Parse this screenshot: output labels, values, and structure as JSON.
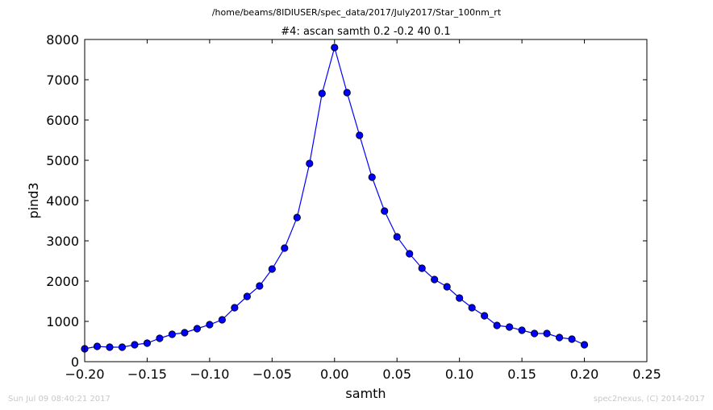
{
  "figure": {
    "suptitle": "/home/beams/8IDIUSER/spec_data/2017/July2017/Star_100nm_rt",
    "footer_left": "Sun Jul 09 08:40:21 2017",
    "footer_right": "spec2nexus, (C) 2014-2017"
  },
  "chart_data": {
    "type": "line",
    "title": "#4: ascan  samth 0.2 -0.2  40 0.1",
    "xlabel": "samth",
    "ylabel": "pind3",
    "xlim": [
      -0.2,
      0.25
    ],
    "ylim": [
      0,
      8000
    ],
    "xticks": [
      -0.2,
      -0.15,
      -0.1,
      -0.05,
      0.0,
      0.05,
      0.1,
      0.15,
      0.2,
      0.25
    ],
    "xtick_labels": [
      "−0.20",
      "−0.15",
      "−0.10",
      "−0.05",
      "0.00",
      "0.05",
      "0.10",
      "0.15",
      "0.20",
      "0.25"
    ],
    "yticks": [
      0,
      1000,
      2000,
      3000,
      4000,
      5000,
      6000,
      7000,
      8000
    ],
    "ytick_labels": [
      "0",
      "1000",
      "2000",
      "3000",
      "4000",
      "5000",
      "6000",
      "7000",
      "8000"
    ],
    "grid": false,
    "color": "#0000ff",
    "marker": "circle",
    "series": [
      {
        "x": [
          -0.2,
          -0.19,
          -0.18,
          -0.17,
          -0.16,
          -0.15,
          -0.14,
          -0.13,
          -0.12,
          -0.11,
          -0.1,
          -0.09,
          -0.08,
          -0.07,
          -0.06,
          -0.05,
          -0.04,
          -0.03,
          -0.02,
          -0.01,
          0.0,
          0.01,
          0.02,
          0.03,
          0.04,
          0.05,
          0.06,
          0.07,
          0.08,
          0.09,
          0.1,
          0.11,
          0.12,
          0.13,
          0.14,
          0.15,
          0.16,
          0.17,
          0.18,
          0.19,
          0.2
        ],
        "y": [
          320,
          380,
          360,
          360,
          420,
          460,
          580,
          680,
          720,
          820,
          920,
          1040,
          1340,
          1620,
          1880,
          2300,
          2820,
          3580,
          4920,
          6660,
          7800,
          6680,
          5620,
          4580,
          3740,
          3100,
          2680,
          2320,
          2040,
          1860,
          1580,
          1340,
          1140,
          900,
          860,
          780,
          700,
          700,
          600,
          560,
          420
        ]
      }
    ]
  }
}
